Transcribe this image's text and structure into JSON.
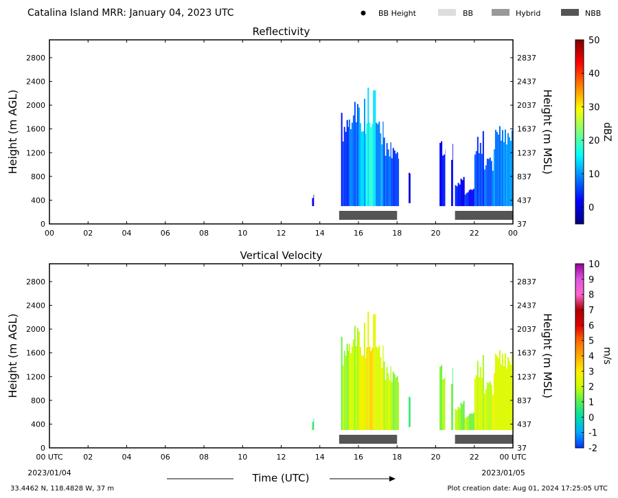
{
  "figure": {
    "title": "Catalina Island MRR:  January 04, 2023 UTC",
    "legend": [
      {
        "label": "BB Height",
        "marker": "dot",
        "color": "#000000"
      },
      {
        "label": "BB",
        "marker": "rect",
        "color": "#dddddd"
      },
      {
        "label": "Hybrid",
        "marker": "rect",
        "color": "#999999"
      },
      {
        "label": "NBB",
        "marker": "rect",
        "color": "#555555"
      }
    ],
    "xlabel": "Time (UTC)",
    "start_date": "2023/01/04",
    "end_date": "2023/01/05",
    "first_tick_label": "00 UTC",
    "last_tick_label": "00 UTC",
    "location": "33.4462 N, 118.4828 W, 37 m",
    "creation_date": "Plot creation date: Aug 01, 2024 17:25:05 UTC"
  },
  "chart_data": [
    {
      "type": "heatmap",
      "title": "Reflectivity",
      "ylabel": "Height (m AGL)",
      "ylabel_right": "Height (m MSL)",
      "colorbar_label": "dBZ",
      "xlim": [
        0,
        24
      ],
      "ylim": [
        0,
        3100
      ],
      "x_ticks": [
        "00",
        "02",
        "04",
        "06",
        "08",
        "10",
        "12",
        "14",
        "16",
        "18",
        "20",
        "22",
        "00"
      ],
      "y_ticks": [
        0,
        400,
        800,
        1200,
        1600,
        2000,
        2400,
        2800
      ],
      "y_ticks_right": [
        37,
        437,
        837,
        1237,
        1637,
        2037,
        2437,
        2837
      ],
      "colorbar_range": [
        -5,
        50
      ],
      "colorbar_ticks": [
        0,
        10,
        20,
        30,
        40,
        50
      ],
      "colormap": [
        "#00007f",
        "#0000ff",
        "#007fff",
        "#00ffff",
        "#7fff7f",
        "#ffff00",
        "#ff7f00",
        "#ff0000",
        "#7f0000"
      ],
      "bright_band_type": [
        {
          "start_hour": 15.0,
          "end_hour": 18.0,
          "type": "NBB"
        },
        {
          "start_hour": 21.0,
          "end_hour": 24.0,
          "type": "NBB"
        }
      ],
      "echo_columns": [
        {
          "start_hour": 13.6,
          "end_hour": 13.7,
          "bottom_m": 300,
          "top_m": 500,
          "value": 0
        },
        {
          "start_hour": 15.1,
          "end_hour": 15.5,
          "bottom_m": 300,
          "top_m": 1950,
          "value": 4
        },
        {
          "start_hour": 15.5,
          "end_hour": 16.0,
          "bottom_m": 300,
          "top_m": 2100,
          "value": 8
        },
        {
          "start_hour": 16.0,
          "end_hour": 16.4,
          "bottom_m": 300,
          "top_m": 2150,
          "value": 12
        },
        {
          "start_hour": 16.4,
          "end_hour": 16.9,
          "bottom_m": 300,
          "top_m": 2300,
          "value": 16
        },
        {
          "start_hour": 16.9,
          "end_hour": 17.3,
          "bottom_m": 300,
          "top_m": 1800,
          "value": 10
        },
        {
          "start_hour": 17.3,
          "end_hour": 17.7,
          "bottom_m": 300,
          "top_m": 1500,
          "value": 7
        },
        {
          "start_hour": 17.7,
          "end_hour": 18.1,
          "bottom_m": 300,
          "top_m": 1400,
          "value": 5
        },
        {
          "start_hour": 18.6,
          "end_hour": 18.7,
          "bottom_m": 350,
          "top_m": 880,
          "value": 1
        },
        {
          "start_hour": 20.2,
          "end_hour": 20.5,
          "bottom_m": 300,
          "top_m": 1500,
          "value": 2
        },
        {
          "start_hour": 20.8,
          "end_hour": 20.9,
          "bottom_m": 300,
          "top_m": 1400,
          "value": 1
        },
        {
          "start_hour": 21.0,
          "end_hour": 21.5,
          "bottom_m": 300,
          "top_m": 800,
          "value": 2
        },
        {
          "start_hour": 21.5,
          "end_hour": 22.0,
          "bottom_m": 300,
          "top_m": 600,
          "value": 3
        },
        {
          "start_hour": 22.0,
          "end_hour": 22.5,
          "bottom_m": 300,
          "top_m": 1600,
          "value": 5
        },
        {
          "start_hour": 22.5,
          "end_hour": 23.0,
          "bottom_m": 300,
          "top_m": 1200,
          "value": 7
        },
        {
          "start_hour": 23.0,
          "end_hour": 23.5,
          "bottom_m": 300,
          "top_m": 1700,
          "value": 9
        },
        {
          "start_hour": 23.5,
          "end_hour": 24.0,
          "bottom_m": 300,
          "top_m": 1600,
          "value": 11
        }
      ]
    },
    {
      "type": "heatmap",
      "title": "Vertical Velocity",
      "ylabel": "Height (m AGL)",
      "ylabel_right": "Height (m MSL)",
      "colorbar_label": "m/s",
      "xlim": [
        0,
        24
      ],
      "ylim": [
        0,
        3100
      ],
      "x_ticks": [
        "00 UTC",
        "02",
        "04",
        "06",
        "08",
        "10",
        "12",
        "14",
        "16",
        "18",
        "20",
        "22",
        "00 UTC"
      ],
      "y_ticks": [
        0,
        400,
        800,
        1200,
        1600,
        2000,
        2400,
        2800
      ],
      "y_ticks_right": [
        37,
        437,
        837,
        1237,
        1637,
        2037,
        2437,
        2837
      ],
      "colorbar_range": [
        -2,
        10
      ],
      "colorbar_ticks": [
        -2,
        -1,
        0,
        1,
        2,
        3,
        4,
        5,
        6,
        7,
        8,
        9,
        10
      ],
      "colormap": [
        "#0033ff",
        "#00aaff",
        "#00ddaa",
        "#55ee55",
        "#ccff00",
        "#ffee00",
        "#ffaa00",
        "#ff6600",
        "#dd0000",
        "#aa0000",
        "#ff66cc",
        "#dd55dd",
        "#990099"
      ],
      "bright_band_type": [
        {
          "start_hour": 15.0,
          "end_hour": 18.0,
          "type": "NBB"
        },
        {
          "start_hour": 21.0,
          "end_hour": 24.0,
          "type": "NBB"
        }
      ],
      "echo_columns": [
        {
          "start_hour": 13.6,
          "end_hour": 13.7,
          "bottom_m": 300,
          "top_m": 500,
          "value": 0.5
        },
        {
          "start_hour": 15.1,
          "end_hour": 15.5,
          "bottom_m": 300,
          "top_m": 1950,
          "value": 1.5
        },
        {
          "start_hour": 15.5,
          "end_hour": 16.0,
          "bottom_m": 300,
          "top_m": 2100,
          "value": 2
        },
        {
          "start_hour": 16.0,
          "end_hour": 16.4,
          "bottom_m": 300,
          "top_m": 2150,
          "value": 2.5
        },
        {
          "start_hour": 16.4,
          "end_hour": 16.9,
          "bottom_m": 300,
          "top_m": 2300,
          "value": 3
        },
        {
          "start_hour": 16.9,
          "end_hour": 17.3,
          "bottom_m": 300,
          "top_m": 1800,
          "value": 2.5
        },
        {
          "start_hour": 17.3,
          "end_hour": 17.7,
          "bottom_m": 300,
          "top_m": 1500,
          "value": 2
        },
        {
          "start_hour": 17.7,
          "end_hour": 18.1,
          "bottom_m": 300,
          "top_m": 1400,
          "value": 1.5
        },
        {
          "start_hour": 18.6,
          "end_hour": 18.7,
          "bottom_m": 350,
          "top_m": 880,
          "value": 1
        },
        {
          "start_hour": 20.2,
          "end_hour": 20.5,
          "bottom_m": 300,
          "top_m": 1500,
          "value": 1.5
        },
        {
          "start_hour": 20.8,
          "end_hour": 20.9,
          "bottom_m": 300,
          "top_m": 1400,
          "value": 1
        },
        {
          "start_hour": 21.0,
          "end_hour": 21.5,
          "bottom_m": 300,
          "top_m": 800,
          "value": 1.5
        },
        {
          "start_hour": 21.5,
          "end_hour": 22.0,
          "bottom_m": 300,
          "top_m": 600,
          "value": 1.5
        },
        {
          "start_hour": 22.0,
          "end_hour": 22.5,
          "bottom_m": 300,
          "top_m": 1600,
          "value": 2
        },
        {
          "start_hour": 22.5,
          "end_hour": 23.0,
          "bottom_m": 300,
          "top_m": 1200,
          "value": 2
        },
        {
          "start_hour": 23.0,
          "end_hour": 23.5,
          "bottom_m": 300,
          "top_m": 1700,
          "value": 2.5
        },
        {
          "start_hour": 23.5,
          "end_hour": 24.0,
          "bottom_m": 300,
          "top_m": 1600,
          "value": 2.5
        }
      ]
    }
  ]
}
